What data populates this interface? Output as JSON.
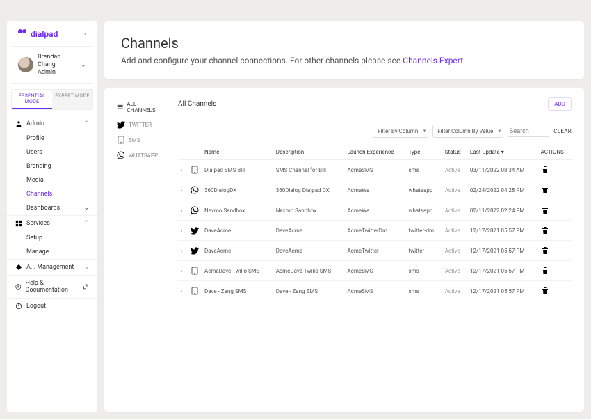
{
  "brand": {
    "name": "dialpad"
  },
  "user": {
    "name": "Brendan Chang",
    "role": "Admin"
  },
  "modes": {
    "essential": "ESSENTIAL MODE",
    "expert": "EXPERT MODE"
  },
  "nav": {
    "admin": {
      "label": "Admin",
      "items": {
        "profile": "Profile",
        "users": "Users",
        "branding": "Branding",
        "media": "Media",
        "channels": "Channels",
        "dashboards": "Dashboards"
      }
    },
    "services": {
      "label": "Services",
      "items": {
        "setup": "Setup",
        "manage": "Manage"
      }
    },
    "ai": {
      "label": "A.I. Management"
    },
    "help": {
      "label": "Help & Documentation"
    },
    "logout": {
      "label": "Logout"
    }
  },
  "header": {
    "title": "Channels",
    "subtitle_pre": "Add and configure your channel connections. For other channels please see ",
    "link": "Channels Expert"
  },
  "filters": {
    "all": "ALL CHANNELS",
    "twitter": "TWITTER",
    "sms": "SMS",
    "whatsapp": "WHATSAPP"
  },
  "table": {
    "title": "All Channels",
    "add": "ADD",
    "filterCol": "Filter By Column",
    "filterVal": "Filter Column By Value",
    "searchPh": "Search",
    "clear": "CLEAR",
    "cols": {
      "name": "Name",
      "desc": "Description",
      "launch": "Launch Experience",
      "type": "Type",
      "status": "Status",
      "updated": "Last Update ▾",
      "actions": "ACTIONS"
    },
    "rows": [
      {
        "icon": "sms",
        "name": "Dialpad SMS Bill",
        "desc": "SMS Channel for Bill",
        "launch": "AcmeSMS",
        "type": "sms",
        "status": "Active",
        "updated": "03/11/2022 08:34 AM"
      },
      {
        "icon": "whatsapp",
        "name": "360DialogDX",
        "desc": "360Dialog Dialpad DX",
        "launch": "AcmeWa",
        "type": "whatsapp",
        "status": "Active",
        "updated": "02/24/2022 04:28 PM"
      },
      {
        "icon": "whatsapp",
        "name": "Nexmo Sandbox",
        "desc": "Nexmo Sandbox",
        "launch": "AcmeWa",
        "type": "whatsapp",
        "status": "Active",
        "updated": "02/11/2022 02:24 PM"
      },
      {
        "icon": "twitter",
        "name": "DaveAcme",
        "desc": "DaveAcme",
        "launch": "AcmeTwitterDm",
        "type": "twitter-dm",
        "status": "Active",
        "updated": "12/17/2021 05:57 PM"
      },
      {
        "icon": "twitter",
        "name": "DaveAcme",
        "desc": "DaveAcme",
        "launch": "AcmeTwitter",
        "type": "twitter",
        "status": "Active",
        "updated": "12/17/2021 05:57 PM"
      },
      {
        "icon": "sms",
        "name": "AcmeDave Twilio SMS",
        "desc": "AcmeDave Twilio SMS",
        "launch": "AcmeSMS",
        "type": "sms",
        "status": "Active",
        "updated": "12/17/2021 05:57 PM"
      },
      {
        "icon": "sms",
        "name": "Dave - Zang SMS",
        "desc": "Dave - Zang SMS",
        "launch": "AcmeSMS",
        "type": "sms",
        "status": "Active",
        "updated": "12/17/2021 05:57 PM"
      }
    ]
  }
}
